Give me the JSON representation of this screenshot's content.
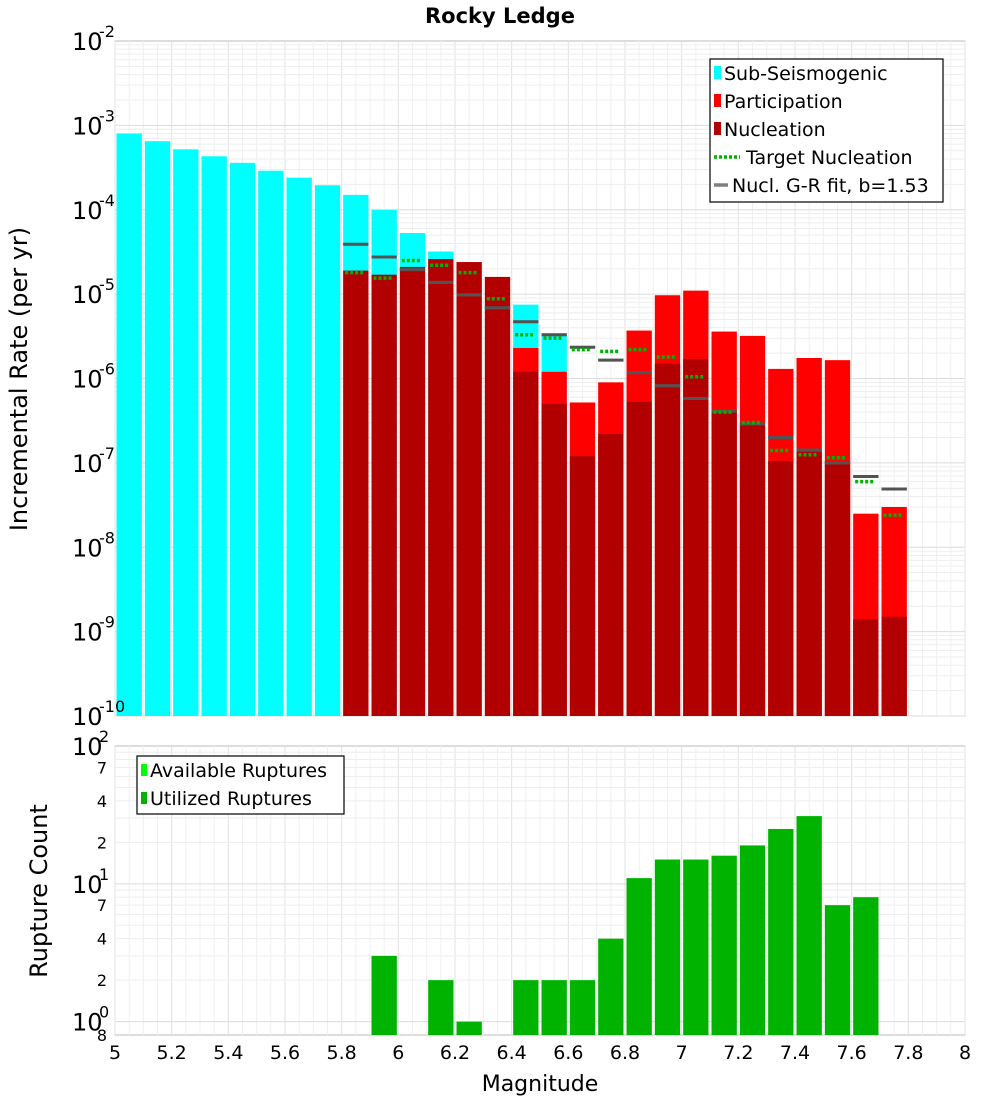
{
  "chart_data": [
    {
      "type": "bar",
      "title": "Rocky Ledge",
      "xlabel": "Magnitude",
      "ylabel": "Incremental Rate (per yr)",
      "yscale": "log",
      "xlim": [
        5,
        8
      ],
      "ylim": [
        1e-10,
        0.01
      ],
      "grid": true,
      "legend_position": "top-right",
      "y_ticks": [
        {
          "base": "10",
          "exp": "-2"
        },
        {
          "base": "10",
          "exp": "-3"
        },
        {
          "base": "10",
          "exp": "-4"
        },
        {
          "base": "10",
          "exp": "-5"
        },
        {
          "base": "10",
          "exp": "-6"
        },
        {
          "base": "10",
          "exp": "-7"
        },
        {
          "base": "10",
          "exp": "-8"
        },
        {
          "base": "10",
          "exp": "-9"
        },
        {
          "base": "10",
          "exp": "-10"
        }
      ],
      "legend": [
        {
          "label": "Sub-Seismogenic",
          "color": "#00ffff",
          "style": "box"
        },
        {
          "label": "Participation",
          "color": "#ff0000",
          "style": "box"
        },
        {
          "label": "Nucleation",
          "color": "#b20000",
          "style": "box"
        },
        {
          "label": "Target Nucleation",
          "color": "#00b300",
          "style": "dotted"
        },
        {
          "label": "Nucl. G-R fit, b=1.53",
          "color": "#808080",
          "style": "line"
        }
      ],
      "series": [
        {
          "name": "Sub-Seismogenic",
          "color": "#00ffff",
          "x": [
            5.05,
            5.15,
            5.25,
            5.35,
            5.45,
            5.55,
            5.65,
            5.75,
            5.85,
            5.95,
            6.05,
            6.15,
            6.45,
            6.55
          ],
          "values": [
            0.0008,
            0.00065,
            0.00052,
            0.00043,
            0.00036,
            0.00029,
            0.00024,
            0.000195,
            0.00015,
            0.0001,
            5.3e-05,
            3.2e-05,
            7.5e-06,
            3.3e-06
          ]
        },
        {
          "name": "Participation",
          "color": "#ff0000",
          "x": [
            6.45,
            6.55,
            6.65,
            6.75,
            6.85,
            6.95,
            7.05,
            7.15,
            7.25,
            7.35,
            7.45,
            7.55,
            7.65,
            7.75
          ],
          "values": [
            2.3e-06,
            1.2e-06,
            5.2e-07,
            9e-07,
            3.7e-06,
            9.7e-06,
            1.1e-05,
            3.6e-06,
            3.2e-06,
            1.3e-06,
            1.75e-06,
            1.65e-06,
            2.5e-08,
            3e-08
          ]
        },
        {
          "name": "Nucleation",
          "color": "#b20000",
          "x": [
            5.85,
            5.95,
            6.05,
            6.15,
            6.25,
            6.35,
            6.45,
            6.55,
            6.65,
            6.75,
            6.85,
            6.95,
            7.05,
            7.15,
            7.25,
            7.35,
            7.45,
            7.55,
            7.65,
            7.75
          ],
          "values": [
            1.9e-05,
            1.7e-05,
            2.1e-05,
            2.6e-05,
            2.4e-05,
            1.6e-05,
            1.2e-06,
            5e-07,
            1.2e-07,
            2.2e-07,
            5.3e-07,
            1.5e-06,
            1.7e-06,
            4.2e-07,
            2.8e-07,
            1.05e-07,
            1.35e-07,
            1.05e-07,
            1.4e-09,
            1.5e-09
          ]
        },
        {
          "name": "Target Nucleation",
          "color": "#00b300",
          "x": [
            5.85,
            5.95,
            6.05,
            6.15,
            6.25,
            6.35,
            6.45,
            6.55,
            6.65,
            6.75,
            6.85,
            6.95,
            7.05,
            7.15,
            7.25,
            7.35,
            7.45,
            7.55,
            7.65,
            7.75
          ],
          "values": [
            1.8e-05,
            1.55e-05,
            2.5e-05,
            2.2e-05,
            1.8e-05,
            8.8e-06,
            3.3e-06,
            3e-06,
            2.2e-06,
            2.1e-06,
            2.2e-06,
            1.8e-06,
            1.05e-06,
            4e-07,
            3e-07,
            1.4e-07,
            1.25e-07,
            1.15e-07,
            6e-08,
            2.4e-08
          ]
        },
        {
          "name": "Nucl. G-R fit, b=1.53",
          "color": "#808080",
          "x": [
            5.85,
            5.95,
            6.05,
            6.15,
            6.25,
            6.35,
            6.45,
            6.55,
            6.65,
            6.75,
            6.85,
            6.95,
            7.05,
            7.15,
            7.25,
            7.35,
            7.45,
            7.55,
            7.65,
            7.75
          ],
          "values": [
            3.9e-05,
            2.75e-05,
            1.95e-05,
            1.38e-05,
            9.8e-06,
            6.9e-06,
            4.7e-06,
            3.3e-06,
            2.35e-06,
            1.65e-06,
            1.17e-06,
            8.2e-07,
            5.8e-07,
            4.1e-07,
            2.9e-07,
            2e-07,
            1.42e-07,
            1e-07,
            6.9e-08,
            4.9e-08
          ]
        }
      ]
    },
    {
      "type": "bar",
      "xlabel": "Magnitude",
      "ylabel": "Rupture Count",
      "yscale": "log",
      "xlim": [
        5,
        8
      ],
      "ylim": [
        0.8,
        100
      ],
      "grid": true,
      "legend_position": "top-left",
      "x_ticks": [
        "5",
        "5.2",
        "5.4",
        "5.6",
        "5.8",
        "6",
        "6.2",
        "6.4",
        "6.6",
        "6.8",
        "7",
        "7.2",
        "7.4",
        "7.6",
        "7.8",
        "8"
      ],
      "y_major_ticks": [
        {
          "value": 100,
          "base": "10",
          "exp": "2"
        },
        {
          "value": 10,
          "base": "10",
          "exp": "1"
        },
        {
          "value": 1,
          "base": "10",
          "exp": "0"
        }
      ],
      "y_minor_labels": [
        {
          "value": 70,
          "label": "7"
        },
        {
          "value": 40,
          "label": "4"
        },
        {
          "value": 20,
          "label": "2"
        },
        {
          "value": 7,
          "label": "7"
        },
        {
          "value": 4,
          "label": "4"
        },
        {
          "value": 2,
          "label": "2"
        },
        {
          "value": 0.8,
          "label": "8"
        }
      ],
      "legend": [
        {
          "label": "Available Ruptures",
          "color": "#00ff00",
          "style": "box"
        },
        {
          "label": "Utilized Ruptures",
          "color": "#00b300",
          "style": "box"
        }
      ],
      "series": [
        {
          "name": "Utilized Ruptures",
          "color": "#00b300",
          "x": [
            5.95,
            6.15,
            6.25,
            6.45,
            6.55,
            6.65,
            6.75,
            6.85,
            6.95,
            7.05,
            7.15,
            7.25,
            7.35,
            7.45,
            7.55,
            7.65
          ],
          "values": [
            3,
            2,
            1,
            2,
            2,
            2,
            4,
            11,
            15,
            15,
            16,
            19,
            25,
            31,
            7,
            8
          ]
        }
      ]
    }
  ]
}
